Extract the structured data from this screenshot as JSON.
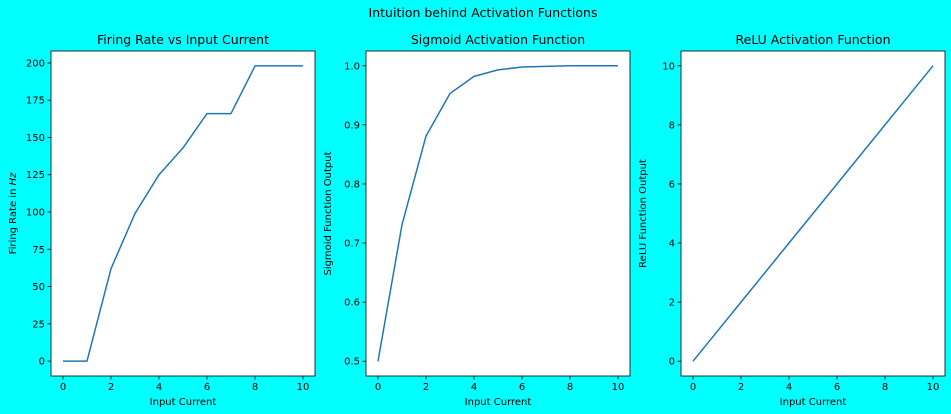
{
  "figure": {
    "suptitle": "Intuition behind Activation Functions",
    "background": "#00ffff",
    "axes_facecolor": "#ffffff",
    "line_color": "#1f77b4"
  },
  "chart_data": [
    {
      "type": "line",
      "title": "Firing Rate vs Input Current",
      "xlabel": "Input Current",
      "ylabel": "Firing Rate in Hz",
      "ylabel_prefix": "Firing Rate in ",
      "ylabel_italic": "Hz",
      "xlim": [
        -0.5,
        10.5
      ],
      "ylim": [
        -10,
        208
      ],
      "xticks": [
        0,
        2,
        4,
        6,
        8,
        10
      ],
      "xtick_labels": [
        "0",
        "2",
        "4",
        "6",
        "8",
        "10"
      ],
      "yticks": [
        0,
        25,
        50,
        75,
        100,
        125,
        150,
        175,
        200
      ],
      "ytick_labels": [
        "0",
        "25",
        "50",
        "75",
        "100",
        "125",
        "150",
        "175",
        "200"
      ],
      "grid": false,
      "legend": "none",
      "series": [
        {
          "x": [
            0,
            1,
            2,
            3,
            4,
            5,
            6,
            7,
            8,
            9,
            10
          ],
          "y": [
            0,
            0,
            62,
            99,
            125,
            143,
            166,
            166,
            198,
            198,
            198
          ]
        }
      ]
    },
    {
      "type": "line",
      "title": "Sigmoid Activation Function",
      "xlabel": "Input Current",
      "ylabel": "Sigmoid Function Output",
      "xlim": [
        -0.5,
        10.5
      ],
      "ylim": [
        0.475,
        1.025
      ],
      "xticks": [
        0,
        2,
        4,
        6,
        8,
        10
      ],
      "xtick_labels": [
        "0",
        "2",
        "4",
        "6",
        "8",
        "10"
      ],
      "yticks": [
        0.5,
        0.6,
        0.7,
        0.8,
        0.9,
        1.0
      ],
      "ytick_labels": [
        "0.5",
        "0.6",
        "0.7",
        "0.8",
        "0.9",
        "1.0"
      ],
      "grid": false,
      "legend": "none",
      "series": [
        {
          "x": [
            0,
            1,
            2,
            3,
            4,
            5,
            6,
            7,
            8,
            9,
            10
          ],
          "y": [
            0.5,
            0.731,
            0.881,
            0.953,
            0.982,
            0.993,
            0.998,
            0.999,
            1.0,
            1.0,
            1.0
          ]
        }
      ]
    },
    {
      "type": "line",
      "title": "ReLU Activation Function",
      "xlabel": "Input Current",
      "ylabel": "ReLU Function Output",
      "xlim": [
        -0.5,
        10.5
      ],
      "ylim": [
        -0.5,
        10.5
      ],
      "xticks": [
        0,
        2,
        4,
        6,
        8,
        10
      ],
      "xtick_labels": [
        "0",
        "2",
        "4",
        "6",
        "8",
        "10"
      ],
      "yticks": [
        0,
        2,
        4,
        6,
        8,
        10
      ],
      "ytick_labels": [
        "0",
        "2",
        "4",
        "6",
        "8",
        "10"
      ],
      "grid": false,
      "legend": "none",
      "series": [
        {
          "x": [
            0,
            1,
            2,
            3,
            4,
            5,
            6,
            7,
            8,
            9,
            10
          ],
          "y": [
            0,
            1,
            2,
            3,
            4,
            5,
            6,
            7,
            8,
            9,
            10
          ]
        }
      ]
    }
  ]
}
